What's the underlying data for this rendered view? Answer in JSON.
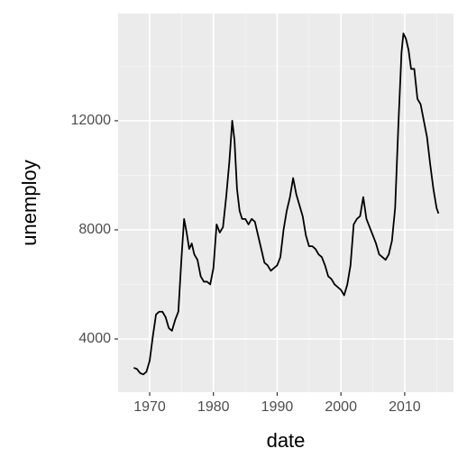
{
  "chart_data": {
    "type": "line",
    "x_label": "date",
    "y_label": "unemploy",
    "xlim": [
      1965.05,
      2017.65
    ],
    "ylim": [
      2050,
      15930
    ],
    "xticks": [
      1970,
      1980,
      1990,
      2000,
      2010
    ],
    "yticks": [
      4000,
      8000,
      12000
    ],
    "grid": true,
    "x": [
      1967.5,
      1968.0,
      1968.5,
      1969.0,
      1969.5,
      1970.0,
      1970.5,
      1971.0,
      1971.5,
      1972.0,
      1972.5,
      1973.0,
      1973.5,
      1974.0,
      1974.5,
      1975.0,
      1975.4,
      1975.8,
      1976.2,
      1976.6,
      1977.0,
      1977.5,
      1978.0,
      1978.5,
      1979.0,
      1979.5,
      1980.0,
      1980.5,
      1981.0,
      1981.5,
      1982.0,
      1982.5,
      1982.95,
      1983.3,
      1983.7,
      1984.1,
      1984.5,
      1985.0,
      1985.5,
      1986.0,
      1986.5,
      1987.0,
      1987.5,
      1988.0,
      1988.5,
      1989.0,
      1989.5,
      1990.0,
      1990.5,
      1991.0,
      1991.5,
      1992.0,
      1992.5,
      1993.0,
      1993.5,
      1994.0,
      1994.5,
      1995.0,
      1995.5,
      1996.0,
      1996.5,
      1997.0,
      1997.5,
      1998.0,
      1998.5,
      1999.0,
      1999.5,
      2000.0,
      2000.5,
      2001.0,
      2001.5,
      2002.0,
      2002.5,
      2003.0,
      2003.5,
      2004.0,
      2004.5,
      2005.0,
      2005.5,
      2006.0,
      2006.5,
      2007.0,
      2007.5,
      2008.0,
      2008.5,
      2009.0,
      2009.5,
      2009.8,
      2010.2,
      2010.6,
      2011.0,
      2011.5,
      2012.0,
      2012.5,
      2013.0,
      2013.5,
      2014.0,
      2014.5,
      2015.0,
      2015.3
    ],
    "series": [
      {
        "name": "unemploy",
        "color": "#000000",
        "values": [
          2944,
          2900,
          2750,
          2700,
          2800,
          3200,
          4100,
          4900,
          5000,
          5000,
          4800,
          4400,
          4300,
          4700,
          5000,
          7000,
          8400,
          7900,
          7300,
          7500,
          7100,
          6900,
          6300,
          6100,
          6100,
          6000,
          6600,
          8200,
          7900,
          8100,
          9200,
          10500,
          12000,
          11300,
          9500,
          8700,
          8400,
          8400,
          8200,
          8400,
          8300,
          7800,
          7300,
          6800,
          6700,
          6500,
          6600,
          6700,
          7000,
          8000,
          8700,
          9200,
          9900,
          9300,
          8900,
          8500,
          7800,
          7400,
          7400,
          7300,
          7100,
          7000,
          6700,
          6300,
          6200,
          6000,
          5900,
          5800,
          5600,
          6000,
          6700,
          8200,
          8400,
          8500,
          9200,
          8400,
          8100,
          7800,
          7500,
          7100,
          7000,
          6900,
          7100,
          7600,
          8800,
          11800,
          14500,
          15200,
          15000,
          14600,
          13900,
          13900,
          12800,
          12600,
          12000,
          11400,
          10400,
          9500,
          8800,
          8600
        ]
      }
    ]
  }
}
